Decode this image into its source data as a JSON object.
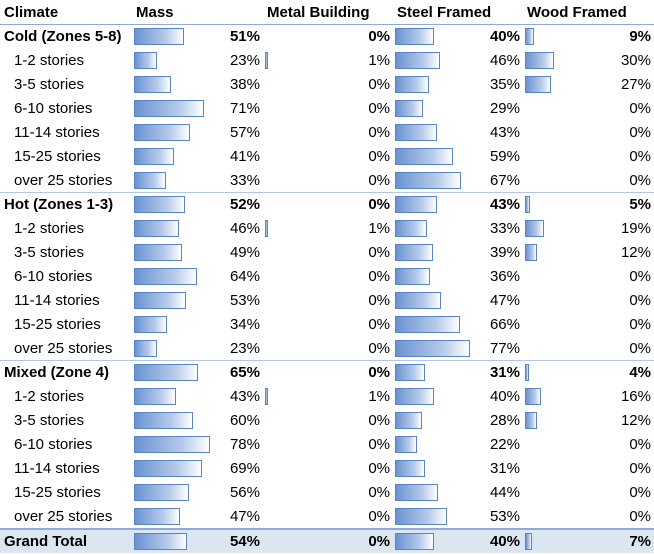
{
  "headers": [
    "Climate",
    "Mass",
    "Metal Building",
    "Steel Framed",
    "Wood Framed"
  ],
  "rows": [
    {
      "label": "Cold (Zones 5-8)",
      "kind": "group",
      "values": [
        "51%",
        "0%",
        "40%",
        "9%"
      ],
      "pct": [
        51,
        0,
        40,
        9
      ]
    },
    {
      "label": "1-2 stories",
      "kind": "sub",
      "values": [
        "23%",
        "1%",
        "46%",
        "30%"
      ],
      "pct": [
        23,
        1,
        46,
        30
      ]
    },
    {
      "label": "3-5 stories",
      "kind": "sub",
      "values": [
        "38%",
        "0%",
        "35%",
        "27%"
      ],
      "pct": [
        38,
        0,
        35,
        27
      ]
    },
    {
      "label": "6-10 stories",
      "kind": "sub",
      "values": [
        "71%",
        "0%",
        "29%",
        "0%"
      ],
      "pct": [
        71,
        0,
        29,
        0
      ]
    },
    {
      "label": "11-14 stories",
      "kind": "sub",
      "values": [
        "57%",
        "0%",
        "43%",
        "0%"
      ],
      "pct": [
        57,
        0,
        43,
        0
      ]
    },
    {
      "label": "15-25 stories",
      "kind": "sub",
      "values": [
        "41%",
        "0%",
        "59%",
        "0%"
      ],
      "pct": [
        41,
        0,
        59,
        0
      ]
    },
    {
      "label": "over 25 stories",
      "kind": "sub",
      "values": [
        "33%",
        "0%",
        "67%",
        "0%"
      ],
      "pct": [
        33,
        0,
        67,
        0
      ]
    },
    {
      "label": "Hot (Zones 1-3)",
      "kind": "group",
      "values": [
        "52%",
        "0%",
        "43%",
        "5%"
      ],
      "pct": [
        52,
        0,
        43,
        5
      ]
    },
    {
      "label": "1-2 stories",
      "kind": "sub",
      "values": [
        "46%",
        "1%",
        "33%",
        "19%"
      ],
      "pct": [
        46,
        1,
        33,
        19
      ]
    },
    {
      "label": "3-5 stories",
      "kind": "sub",
      "values": [
        "49%",
        "0%",
        "39%",
        "12%"
      ],
      "pct": [
        49,
        0,
        39,
        12
      ]
    },
    {
      "label": "6-10 stories",
      "kind": "sub",
      "values": [
        "64%",
        "0%",
        "36%",
        "0%"
      ],
      "pct": [
        64,
        0,
        36,
        0
      ]
    },
    {
      "label": "11-14 stories",
      "kind": "sub",
      "values": [
        "53%",
        "0%",
        "47%",
        "0%"
      ],
      "pct": [
        53,
        0,
        47,
        0
      ]
    },
    {
      "label": "15-25 stories",
      "kind": "sub",
      "values": [
        "34%",
        "0%",
        "66%",
        "0%"
      ],
      "pct": [
        34,
        0,
        66,
        0
      ]
    },
    {
      "label": "over 25 stories",
      "kind": "sub",
      "values": [
        "23%",
        "0%",
        "77%",
        "0%"
      ],
      "pct": [
        23,
        0,
        77,
        0
      ]
    },
    {
      "label": "Mixed (Zone 4)",
      "kind": "group",
      "values": [
        "65%",
        "0%",
        "31%",
        "4%"
      ],
      "pct": [
        65,
        0,
        31,
        4
      ]
    },
    {
      "label": "1-2 stories",
      "kind": "sub",
      "values": [
        "43%",
        "1%",
        "40%",
        "16%"
      ],
      "pct": [
        43,
        1,
        40,
        16
      ]
    },
    {
      "label": "3-5 stories",
      "kind": "sub",
      "values": [
        "60%",
        "0%",
        "28%",
        "12%"
      ],
      "pct": [
        60,
        0,
        28,
        12
      ]
    },
    {
      "label": "6-10 stories",
      "kind": "sub",
      "values": [
        "78%",
        "0%",
        "22%",
        "0%"
      ],
      "pct": [
        78,
        0,
        22,
        0
      ]
    },
    {
      "label": "11-14 stories",
      "kind": "sub",
      "values": [
        "69%",
        "0%",
        "31%",
        "0%"
      ],
      "pct": [
        69,
        0,
        31,
        0
      ]
    },
    {
      "label": "15-25 stories",
      "kind": "sub",
      "values": [
        "56%",
        "0%",
        "44%",
        "0%"
      ],
      "pct": [
        56,
        0,
        44,
        0
      ]
    },
    {
      "label": "over 25 stories",
      "kind": "sub",
      "values": [
        "47%",
        "0%",
        "53%",
        "0%"
      ],
      "pct": [
        47,
        0,
        53,
        0
      ]
    },
    {
      "label": "Grand Total",
      "kind": "total",
      "values": [
        "54%",
        "0%",
        "40%",
        "7%"
      ],
      "pct": [
        54,
        0,
        40,
        7
      ]
    }
  ],
  "colors": {
    "bar": "#6a93d1",
    "bar_border": "#5b84c4",
    "band": "#dce6f1",
    "header_rule": "#8ea9db"
  }
}
